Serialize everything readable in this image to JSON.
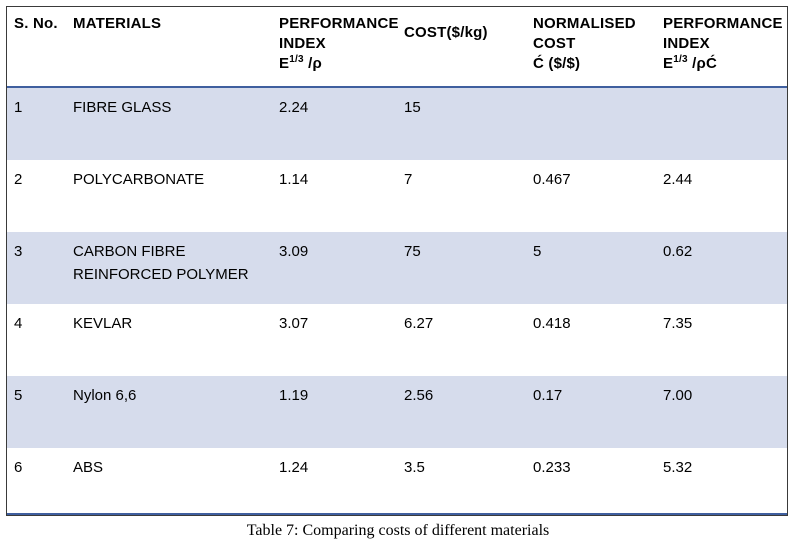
{
  "table": {
    "headers": {
      "sno": "S. No.",
      "materials": "MATERIALS",
      "perf_index_line1": "PERFORMANCE",
      "perf_index_line2": "INDEX",
      "perf_index_base": "E",
      "perf_index_exp": "1/3",
      "perf_index_tail": " /ρ",
      "cost": "COST($/kg)",
      "norm_line1": "NORMALISED",
      "norm_line2": "COST",
      "norm_line3": "Ć ($/$)",
      "perf2_line1": "PERFORMANCE",
      "perf2_line2": "INDEX",
      "perf2_base": "E",
      "perf2_exp": "1/3",
      "perf2_tail": " /ρĆ"
    },
    "rows": [
      {
        "sno": "1",
        "material": "FIBRE GLASS",
        "perf": "2.24",
        "cost": "15",
        "norm": "",
        "perf2": ""
      },
      {
        "sno": "2",
        "material": "POLYCARBONATE",
        "perf": "1.14",
        "cost": "7",
        "norm": "0.467",
        "perf2": "2.44"
      },
      {
        "sno": "3",
        "material": "CARBON FIBRE REINFORCED POLYMER",
        "perf": "3.09",
        "cost": "75",
        "norm": "5",
        "perf2": "0.62"
      },
      {
        "sno": "4",
        "material": "KEVLAR",
        "perf": "3.07",
        "cost": "6.27",
        "norm": "0.418",
        "perf2": "7.35"
      },
      {
        "sno": "5",
        "material": "Nylon 6,6",
        "perf": "1.19",
        "cost": "2.56",
        "norm": "0.17",
        "perf2": "7.00"
      },
      {
        "sno": "6",
        "material": "ABS",
        "perf": "1.24",
        "cost": "3.5",
        "norm": "0.233",
        "perf2": "5.32"
      }
    ]
  },
  "caption": "Table 7: Comparing costs of different materials",
  "colors": {
    "header_rule": "#3f5f9f",
    "shaded_row": "#d6dcec"
  }
}
